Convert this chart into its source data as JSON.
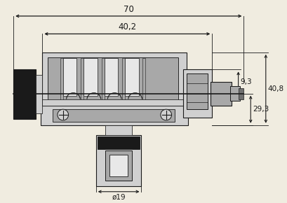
{
  "bg_color": "#f0ece0",
  "line_color": "#1a1a1a",
  "dim_color": "#1a1a1a",
  "gray_light": "#d0d0d0",
  "gray_mid": "#a8a8a8",
  "gray_dark": "#707070",
  "black_fill": "#1a1a1a",
  "white_fill": "#e8e8e8",
  "dim_70": "70",
  "dim_402": "40,2",
  "dim_93": "9,3",
  "dim_408": "40,8",
  "dim_293": "29,3",
  "dim_dia19": "ø19",
  "lw": 0.8
}
